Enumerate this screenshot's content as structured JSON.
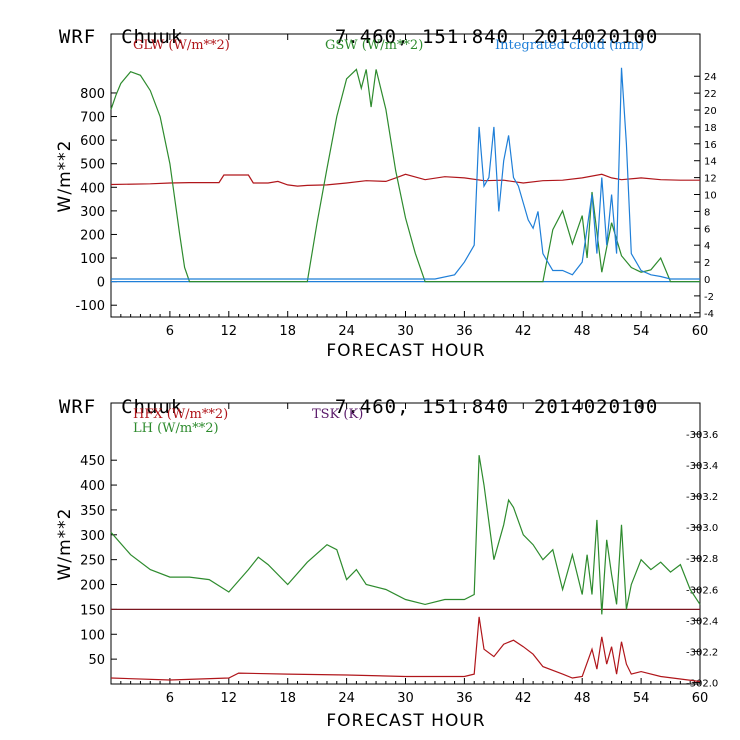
{
  "top": {
    "header": {
      "model": "WRF",
      "location": "Chuuk",
      "coords": "7.460, 151.840",
      "date": "2014020100"
    },
    "chart_data": {
      "type": "line",
      "xlabel": "FORECAST HOUR",
      "ylabel": "W/m**2",
      "xlim": [
        0,
        60
      ],
      "ylim": [
        -150,
        1050
      ],
      "y2lim": [
        -4.5,
        29
      ],
      "xticks": [
        "6",
        "12",
        "18",
        "24",
        "30",
        "36",
        "42",
        "48",
        "54",
        "60"
      ],
      "yticks": [
        "-100",
        "0",
        "100",
        "200",
        "300",
        "400",
        "500",
        "600",
        "700",
        "800"
      ],
      "y2ticks": [
        "-4",
        "-2",
        "0",
        "2",
        "4",
        "6",
        "8",
        "10",
        "12",
        "14",
        "16",
        "18",
        "20",
        "22",
        "24"
      ],
      "series": [
        {
          "name": "GLW (W/m**2)",
          "color": "#b0161b",
          "axis": "left",
          "x": [
            0,
            4,
            6,
            8,
            10,
            11,
            11.5,
            14,
            14.5,
            16,
            17,
            18,
            19,
            20,
            22,
            24,
            26,
            28,
            29,
            30,
            32,
            34,
            36,
            38,
            40,
            42,
            44,
            46,
            48,
            50,
            51,
            52,
            54,
            56,
            58,
            60
          ],
          "y": [
            412,
            415,
            418,
            420,
            420,
            420,
            452,
            452,
            418,
            418,
            425,
            410,
            405,
            408,
            410,
            418,
            428,
            425,
            440,
            455,
            432,
            445,
            440,
            428,
            430,
            418,
            428,
            430,
            440,
            455,
            440,
            432,
            440,
            432,
            430,
            430
          ]
        },
        {
          "name": "GSW (W/m**2)",
          "color": "#2e8b2e",
          "axis": "left",
          "x": [
            0,
            0.5,
            1,
            2,
            3,
            4,
            5,
            6,
            7,
            7.5,
            8,
            20,
            21,
            22,
            23,
            24,
            25,
            25.5,
            26,
            26.5,
            27,
            28,
            29,
            30,
            31,
            32,
            44,
            45,
            46,
            47,
            48,
            48.5,
            49,
            50,
            51,
            52,
            53,
            54,
            55,
            56,
            57,
            60
          ],
          "y": [
            730,
            790,
            840,
            890,
            875,
            810,
            700,
            500,
            200,
            60,
            0,
            0,
            250,
            480,
            700,
            860,
            900,
            820,
            900,
            740,
            900,
            730,
            470,
            270,
            120,
            0,
            0,
            220,
            300,
            160,
            280,
            100,
            380,
            40,
            250,
            110,
            60,
            40,
            50,
            100,
            0,
            0
          ]
        },
        {
          "name": "Integrated cloud (mm)",
          "color": "#1f7fd8",
          "axis": "right",
          "x": [
            0,
            33,
            35,
            36,
            37,
            37.5,
            38,
            38.5,
            39,
            39.5,
            40,
            40.5,
            41,
            41.5,
            42,
            42.5,
            43,
            43.5,
            44,
            44.5,
            45,
            46,
            47,
            48,
            49,
            49.5,
            50,
            50.5,
            51,
            51.5,
            52,
            52.5,
            53,
            54,
            55,
            56,
            57,
            60
          ],
          "y": [
            0,
            0,
            0.5,
            2,
            4,
            18,
            11,
            12,
            18,
            8,
            14,
            17,
            12,
            11,
            9,
            7,
            6,
            8,
            3,
            2,
            1,
            1,
            0.5,
            2,
            10,
            3,
            12,
            4,
            10,
            3,
            25,
            16,
            3,
            1,
            0.5,
            0.3,
            0,
            0
          ]
        }
      ]
    }
  },
  "bottom": {
    "header": {
      "model": "WRF",
      "location": "Chuuk",
      "coords": "7.460, 151.840",
      "date": "2014020100"
    },
    "chart_data": {
      "type": "line",
      "xlabel": "FORECAST HOUR",
      "ylabel": "W/m**2",
      "xlim": [
        0,
        60
      ],
      "ylim": [
        0,
        565
      ],
      "y2lim": [
        301.99,
        303.8
      ],
      "xticks": [
        "6",
        "12",
        "18",
        "24",
        "30",
        "36",
        "42",
        "48",
        "54",
        "60"
      ],
      "yticks": [
        "50",
        "100",
        "150",
        "200",
        "250",
        "300",
        "350",
        "400",
        "450"
      ],
      "y2ticks": [
        "302.0",
        "302.2",
        "302.4",
        "302.6",
        "302.8",
        "303.0",
        "303.2",
        "303.4",
        "303.6"
      ],
      "series": [
        {
          "name": "HFX (W/m**2)",
          "color": "#b0161b",
          "axis": "left",
          "x": [
            0,
            6,
            12,
            13,
            18,
            24,
            30,
            36,
            37,
            37.5,
            38,
            39,
            40,
            41,
            42,
            43,
            44,
            46,
            47,
            48,
            49,
            49.5,
            50,
            50.5,
            51,
            51.5,
            52,
            52.5,
            53,
            54,
            56,
            58,
            60
          ],
          "y": [
            12,
            8,
            12,
            22,
            20,
            18,
            15,
            15,
            20,
            135,
            70,
            55,
            80,
            88,
            75,
            60,
            35,
            20,
            12,
            15,
            70,
            30,
            95,
            40,
            75,
            20,
            85,
            40,
            20,
            25,
            15,
            10,
            5
          ]
        },
        {
          "name": "LH (W/m**2)",
          "color": "#2e8b2e",
          "axis": "left",
          "x": [
            0,
            2,
            4,
            6,
            8,
            10,
            12,
            14,
            15,
            16,
            18,
            20,
            22,
            23,
            24,
            25,
            26,
            28,
            30,
            32,
            34,
            36,
            37,
            37.5,
            38,
            39,
            40,
            40.5,
            41,
            42,
            43,
            44,
            45,
            46,
            47,
            48,
            48.5,
            49,
            49.5,
            50,
            50.5,
            51,
            51.5,
            52,
            52.5,
            53,
            54,
            55,
            56,
            57,
            58,
            59,
            60
          ],
          "y": [
            305,
            260,
            230,
            215,
            215,
            210,
            185,
            230,
            255,
            240,
            200,
            245,
            280,
            270,
            210,
            230,
            200,
            190,
            170,
            160,
            170,
            170,
            180,
            460,
            400,
            250,
            320,
            370,
            355,
            300,
            280,
            250,
            270,
            190,
            260,
            180,
            260,
            180,
            330,
            140,
            290,
            220,
            160,
            320,
            150,
            200,
            250,
            230,
            245,
            225,
            240,
            190,
            160
          ]
        },
        {
          "name": "TSK (K)",
          "color": "#5a1a6a",
          "axis": "right",
          "x": [],
          "y": []
        }
      ]
    }
  }
}
